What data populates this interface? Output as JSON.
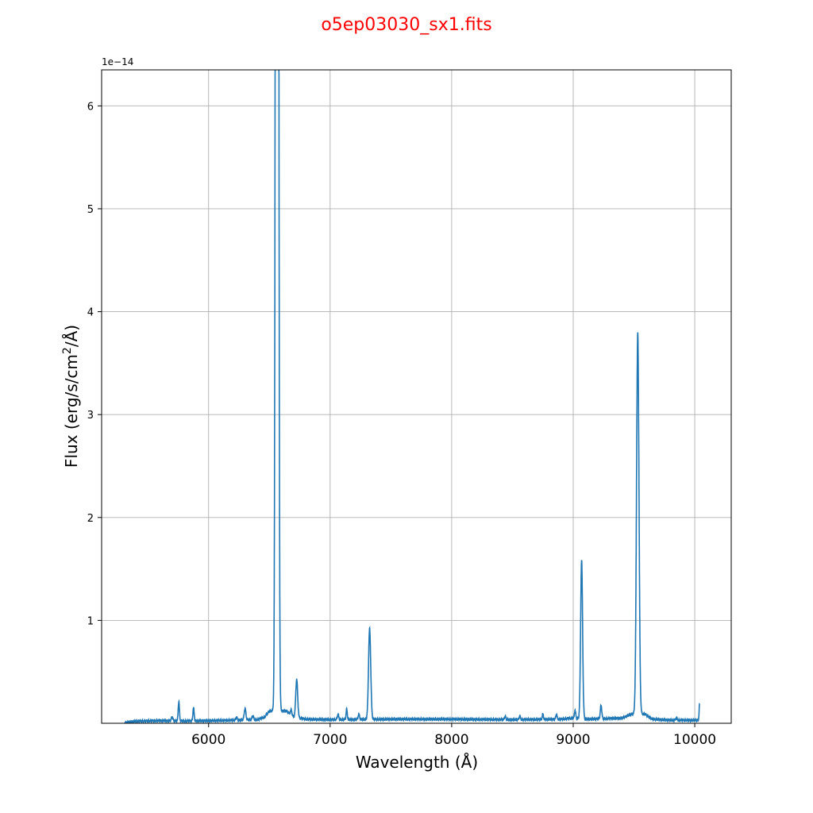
{
  "chart_data": {
    "type": "line",
    "title": "o5ep03030_sx1.fits",
    "title_color": "#ff0000",
    "xlabel": "Wavelength (Å)",
    "ylabel": "Flux (erg/s/cm²/Å)",
    "ylabel_prefix": "Flux (erg/s/cm",
    "ylabel_sup": "2",
    "ylabel_suffix": "/Å)",
    "y_offset_text": "1e−14",
    "y_scale": 1e-14,
    "xlim": [
      5120,
      10300
    ],
    "ylim": [
      0.0,
      6.35
    ],
    "grid": true,
    "line_color": "#1f77b4",
    "xticks": [
      6000,
      7000,
      8000,
      9000,
      10000
    ],
    "xtick_labels": [
      "6000",
      "7000",
      "8000",
      "9000",
      "10000"
    ],
    "yticks": [
      1,
      2,
      3,
      4,
      5,
      6
    ],
    "ytick_labels": [
      "1",
      "2",
      "3",
      "4",
      "5",
      "6"
    ],
    "series": [
      {
        "continuum": [
          [
            5310,
            0.005
          ],
          [
            5400,
            0.02
          ],
          [
            5600,
            0.025
          ],
          [
            5800,
            0.022
          ],
          [
            6000,
            0.025
          ],
          [
            6200,
            0.03
          ],
          [
            6400,
            0.035
          ],
          [
            6460,
            0.06
          ],
          [
            6500,
            0.12
          ],
          [
            6640,
            0.12
          ],
          [
            6700,
            0.06
          ],
          [
            6800,
            0.04
          ],
          [
            7000,
            0.035
          ],
          [
            7500,
            0.04
          ],
          [
            8000,
            0.04
          ],
          [
            8500,
            0.035
          ],
          [
            8900,
            0.04
          ],
          [
            9000,
            0.05
          ],
          [
            9100,
            0.04
          ],
          [
            9400,
            0.05
          ],
          [
            9480,
            0.09
          ],
          [
            9590,
            0.09
          ],
          [
            9650,
            0.04
          ],
          [
            9800,
            0.03
          ],
          [
            10020,
            0.03
          ]
        ],
        "lines": [
          {
            "center": 5700,
            "peak": 0.04,
            "width": 6
          },
          {
            "center": 5755,
            "peak": 0.19,
            "width": 5
          },
          {
            "center": 5876,
            "peak": 0.13,
            "width": 5
          },
          {
            "center": 6230,
            "peak": 0.03,
            "width": 5
          },
          {
            "center": 6300,
            "peak": 0.11,
            "width": 7
          },
          {
            "center": 6364,
            "peak": 0.04,
            "width": 6
          },
          {
            "center": 6563,
            "peak": 30.0,
            "width": 9
          },
          {
            "center": 6680,
            "peak": 0.05,
            "width": 6
          },
          {
            "center": 6725,
            "peak": 0.37,
            "width": 8
          },
          {
            "center": 7065,
            "peak": 0.05,
            "width": 6
          },
          {
            "center": 7136,
            "peak": 0.1,
            "width": 5
          },
          {
            "center": 7236,
            "peak": 0.05,
            "width": 6
          },
          {
            "center": 7325,
            "peak": 0.88,
            "width": 9
          },
          {
            "center": 8440,
            "peak": 0.03,
            "width": 6
          },
          {
            "center": 8560,
            "peak": 0.03,
            "width": 6
          },
          {
            "center": 8750,
            "peak": 0.05,
            "width": 5
          },
          {
            "center": 8862,
            "peak": 0.05,
            "width": 5
          },
          {
            "center": 9015,
            "peak": 0.08,
            "width": 5
          },
          {
            "center": 9069,
            "peak": 1.54,
            "width": 8
          },
          {
            "center": 9229,
            "peak": 0.13,
            "width": 6
          },
          {
            "center": 9531,
            "peak": 3.7,
            "width": 10
          },
          {
            "center": 9850,
            "peak": 0.02,
            "width": 6
          },
          {
            "center": 10040,
            "peak": 0.16,
            "width": 4
          }
        ],
        "x_start": 5310,
        "x_end": 10040
      }
    ]
  }
}
